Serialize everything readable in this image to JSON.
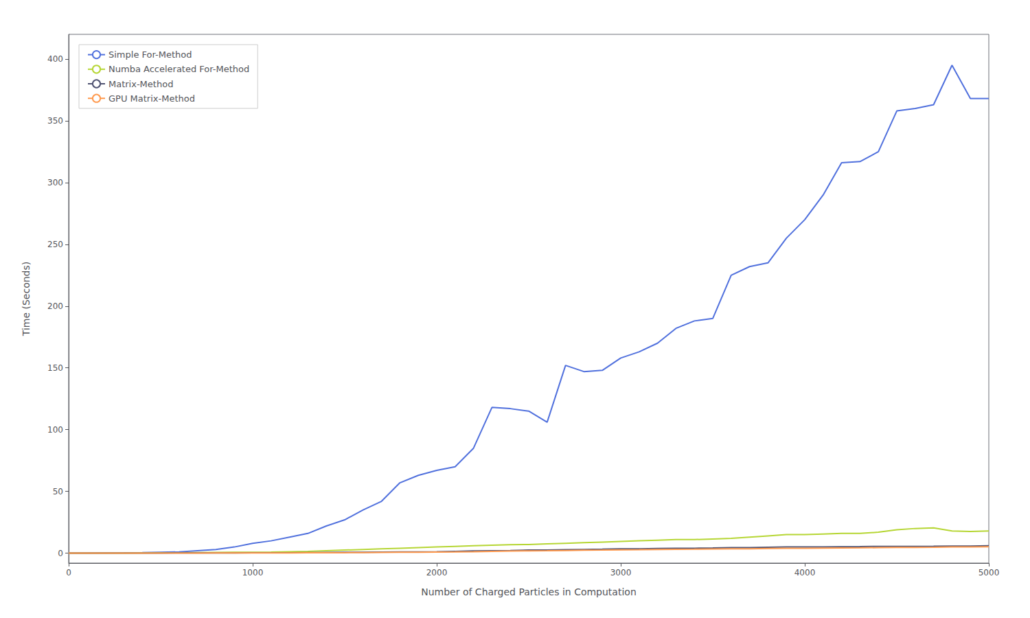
{
  "chart_data": {
    "type": "line",
    "xlabel": "Number of Charged Particles in Computation",
    "ylabel": "Time (Seconds)",
    "x": [
      0,
      100,
      200,
      300,
      400,
      500,
      600,
      700,
      800,
      900,
      1000,
      1100,
      1200,
      1300,
      1400,
      1500,
      1600,
      1700,
      1800,
      1900,
      2000,
      2100,
      2200,
      2300,
      2400,
      2500,
      2600,
      2700,
      2800,
      2900,
      3000,
      3100,
      3200,
      3300,
      3400,
      3500,
      3600,
      3700,
      3800,
      3900,
      4000,
      4100,
      4200,
      4300,
      4400,
      4500,
      4600,
      4700,
      4800,
      4900,
      5000
    ],
    "series": [
      {
        "name": "Simple For-Method",
        "values": [
          0,
          0,
          0.2,
          0.3,
          0.5,
          0.8,
          1.0,
          2.0,
          3.0,
          5.0,
          8.0,
          10.0,
          13.0,
          16.0,
          22.0,
          27.0,
          35.0,
          42.0,
          57.0,
          63.0,
          67.0,
          70.0,
          85.0,
          118.0,
          117.0,
          115.0,
          106.0,
          152.0,
          147.0,
          148.0,
          158.0,
          163.0,
          170.0,
          182.0,
          188.0,
          190.0,
          225.0,
          232.0,
          235.0,
          255.0,
          270.0,
          290.0,
          316.0,
          317.0,
          325.0,
          358.0,
          360.0,
          363.0,
          395.0,
          368.0,
          368.0
        ]
      },
      {
        "name": "Numba Accelerated For-Method",
        "values": [
          0,
          0,
          0.1,
          0.1,
          0.2,
          0.3,
          0.4,
          0.5,
          0.6,
          0.7,
          0.8,
          0.9,
          1.2,
          1.5,
          2.0,
          2.5,
          3.0,
          3.5,
          4.0,
          4.5,
          5.0,
          5.5,
          6.0,
          6.5,
          6.8,
          7.0,
          7.5,
          8.0,
          8.5,
          9.0,
          9.5,
          10.0,
          10.5,
          11.0,
          11.0,
          11.5,
          12.0,
          13.0,
          14.0,
          15.0,
          15.0,
          15.5,
          16.0,
          16.0,
          17.0,
          19.0,
          20.0,
          20.5,
          18.0,
          17.5,
          18.0
        ]
      },
      {
        "name": "Matrix-Method",
        "values": [
          0,
          0,
          0.05,
          0.05,
          0.1,
          0.1,
          0.15,
          0.2,
          0.2,
          0.25,
          0.3,
          0.35,
          0.4,
          0.5,
          0.6,
          0.7,
          0.8,
          0.9,
          1.0,
          1.1,
          1.2,
          1.5,
          1.8,
          2.0,
          2.2,
          2.5,
          2.5,
          2.8,
          3.0,
          3.2,
          3.5,
          3.5,
          3.8,
          4.0,
          4.0,
          4.2,
          4.5,
          4.5,
          4.8,
          5.0,
          5.0,
          5.0,
          5.2,
          5.3,
          5.5,
          5.5,
          5.5,
          5.6,
          5.8,
          5.8,
          6.0
        ]
      },
      {
        "name": "GPU Matrix-Method",
        "values": [
          0,
          0,
          0.05,
          0.05,
          0.08,
          0.1,
          0.1,
          0.12,
          0.15,
          0.18,
          0.2,
          0.22,
          0.25,
          0.3,
          0.35,
          0.4,
          0.5,
          0.6,
          0.7,
          0.8,
          0.9,
          1.0,
          1.2,
          1.5,
          1.7,
          1.9,
          2.0,
          2.2,
          2.4,
          2.5,
          2.7,
          2.8,
          3.0,
          3.1,
          3.2,
          3.4,
          3.5,
          3.6,
          3.8,
          3.9,
          4.0,
          4.1,
          4.2,
          4.3,
          4.5,
          4.6,
          4.7,
          4.8,
          5.0,
          5.1,
          5.2
        ]
      }
    ],
    "xlim": [
      0,
      5000
    ],
    "ylim": [
      -8,
      420
    ],
    "xticks": [
      0,
      1000,
      2000,
      3000,
      4000,
      5000
    ],
    "yticks": [
      0,
      50,
      100,
      150,
      200,
      250,
      300,
      350,
      400
    ],
    "legend": "upper left",
    "grid": false
  }
}
